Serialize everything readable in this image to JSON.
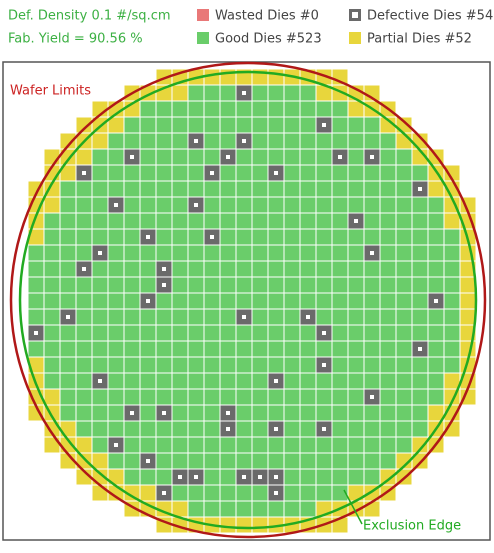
{
  "header": {
    "density": "Def. Density 0.1 #/sq.cm",
    "yield": "Fab. Yield = 90.56 %"
  },
  "legend": [
    {
      "label": "Wasted Dies #0",
      "color": "#e97878"
    },
    {
      "label": "Good Dies #523",
      "color": "#6acd6a"
    },
    {
      "label": "Defective Dies #54",
      "color": "#6a6a6a"
    },
    {
      "label": "Partial Dies #52",
      "color": "#e8d63c"
    }
  ],
  "annotations": {
    "wafer": "Wafer Limits",
    "exclusion": "Exclusion Edge"
  }
}
